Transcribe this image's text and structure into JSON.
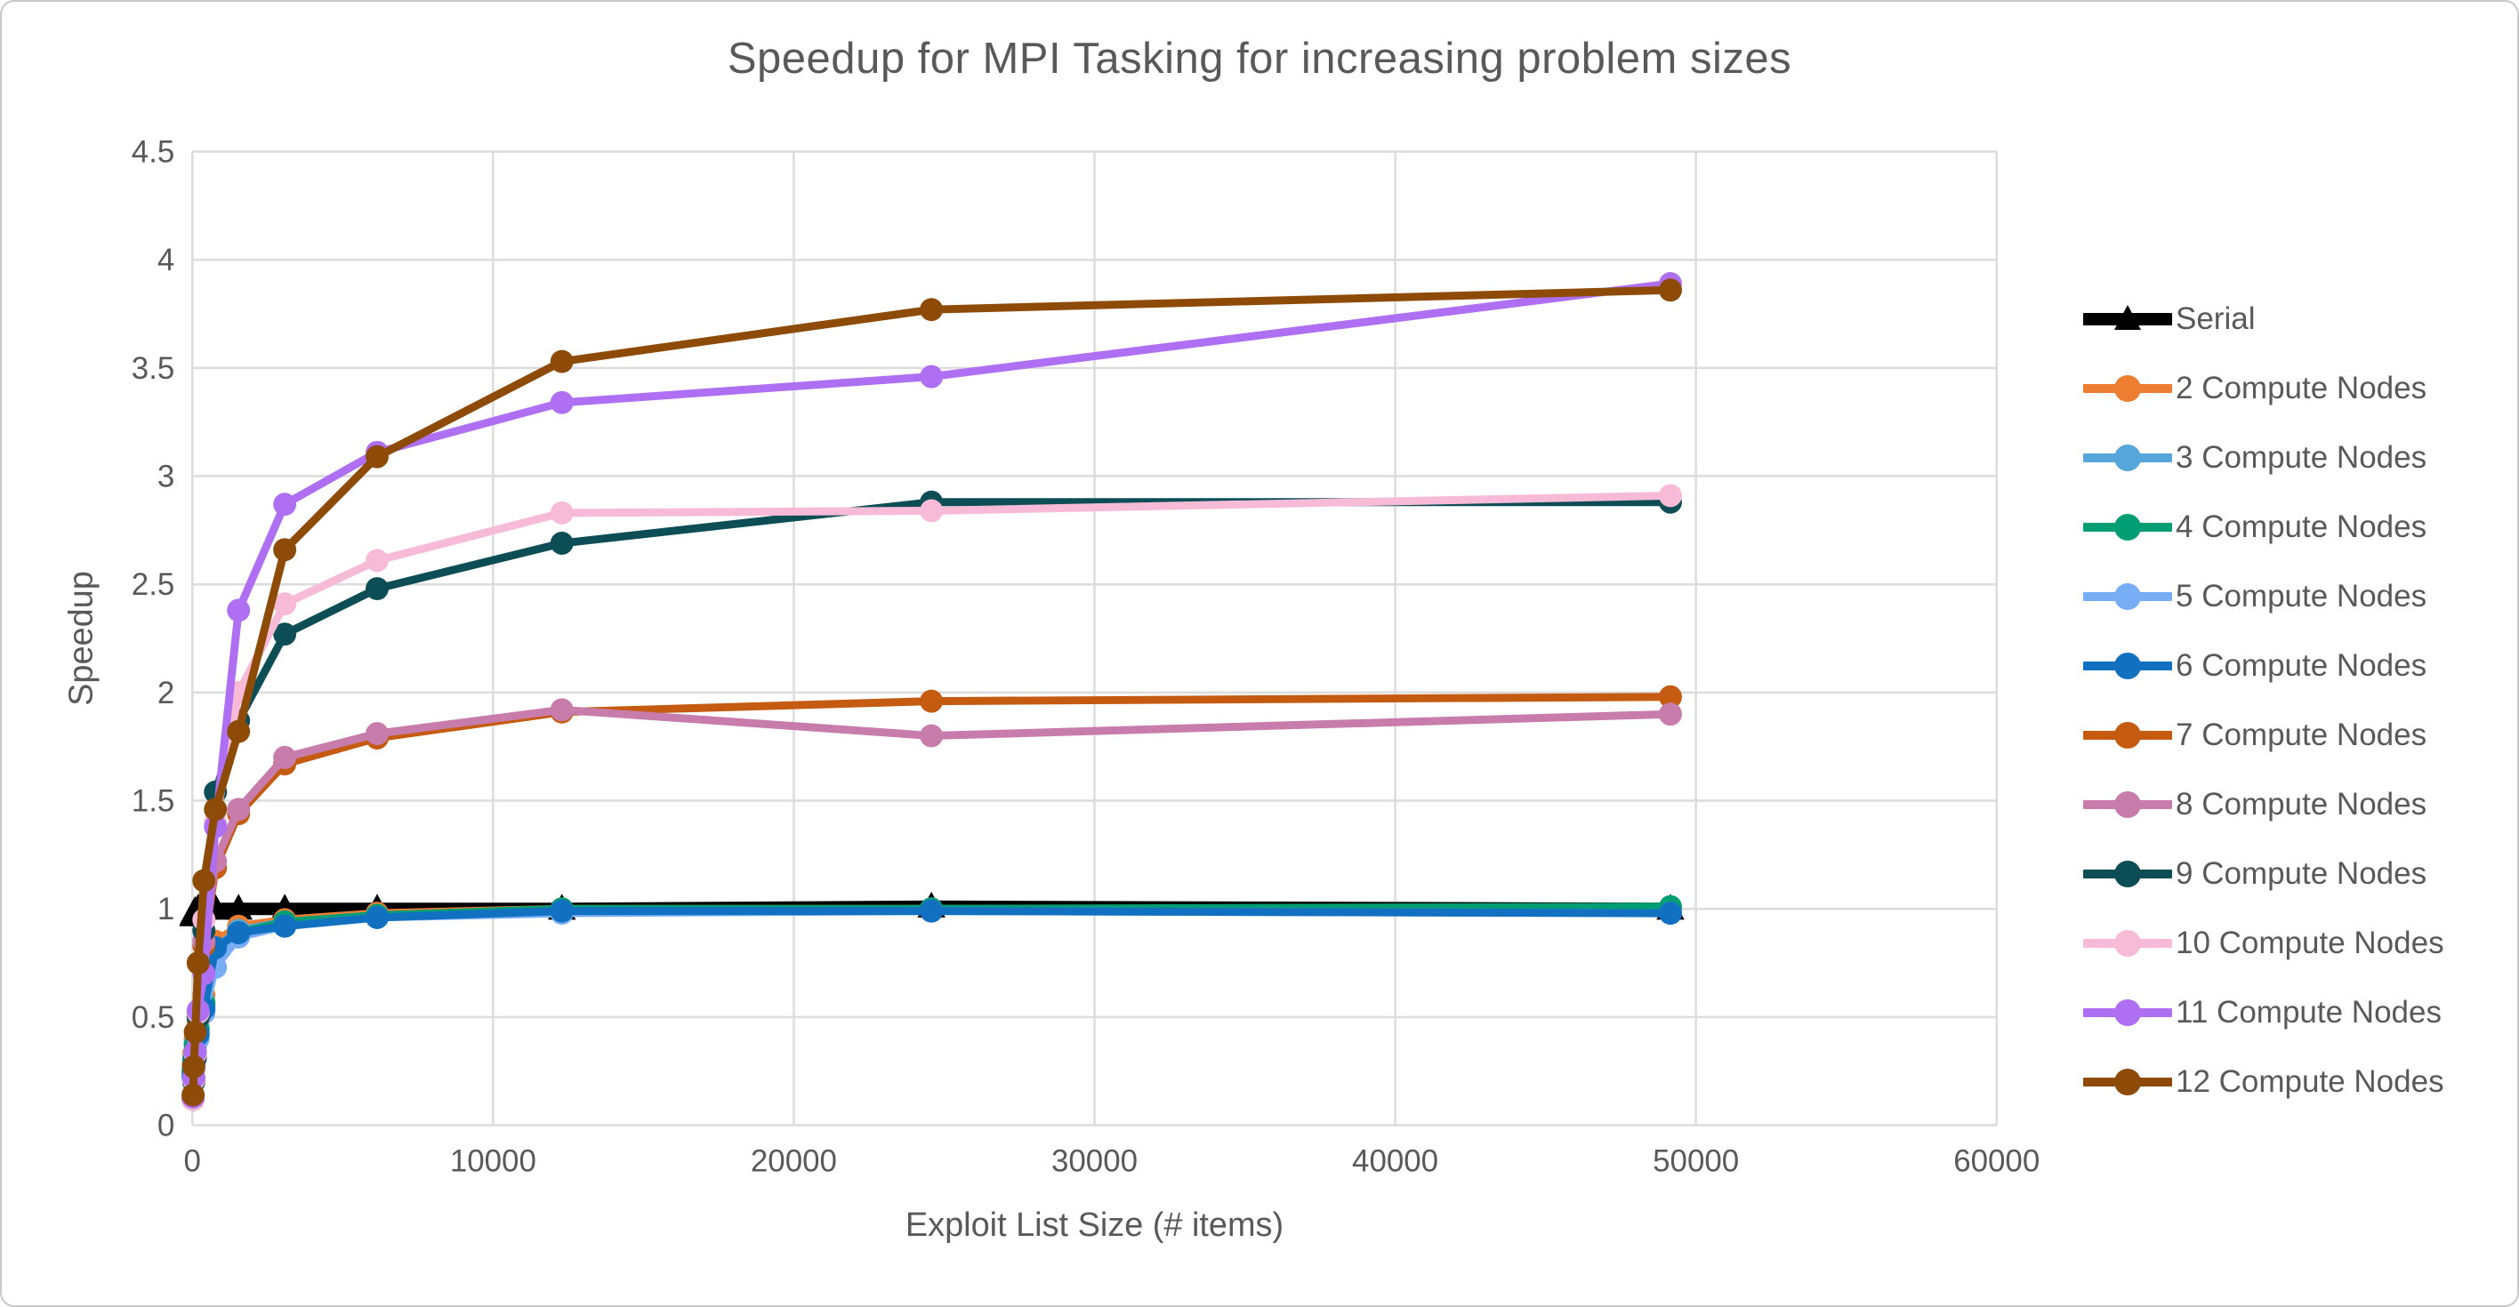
{
  "frame": {
    "background": "#FFFFFF",
    "border_color": "#C9C9C9"
  },
  "colors": {
    "grid": "#DCDCDC",
    "axis_text": "#595959",
    "title_text": "#595959"
  },
  "chart_data": {
    "type": "line",
    "title": "Speedup for MPI Tasking for increasing problem sizes",
    "xlabel": "Exploit List Size (# items)",
    "ylabel": "Speedup",
    "xlim": [
      0,
      60000
    ],
    "ylim": [
      0,
      4.5
    ],
    "x_ticks": [
      0,
      10000,
      20000,
      30000,
      40000,
      50000,
      60000
    ],
    "y_ticks": [
      0,
      0.5,
      1,
      1.5,
      2,
      2.5,
      3,
      3.5,
      4,
      4.5
    ],
    "grid": true,
    "legend_position": "right",
    "x": [
      24,
      48,
      96,
      192,
      384,
      768,
      1536,
      3072,
      6144,
      12288,
      24576,
      49152
    ],
    "series": [
      {
        "name": "Serial",
        "color": "#000000",
        "marker": "triangle",
        "values": [
          0.97,
          0.98,
          0.99,
          1.0,
          1.0,
          1.0,
          1.0,
          1.0,
          1.0,
          1.0,
          1.01,
          1.0
        ]
      },
      {
        "name": "2 Compute Nodes",
        "color": "#ED7D31",
        "marker": "circle",
        "values": [
          0.28,
          0.33,
          0.4,
          0.48,
          0.6,
          0.85,
          0.92,
          0.95,
          0.98,
          1.0,
          1.0,
          1.0
        ]
      },
      {
        "name": "3 Compute Nodes",
        "color": "#56A6DC",
        "marker": "circle",
        "values": [
          0.26,
          0.31,
          0.38,
          0.45,
          0.57,
          0.82,
          0.9,
          0.94,
          0.97,
          0.99,
          1.0,
          1.0
        ]
      },
      {
        "name": "4 Compute Nodes",
        "color": "#029E73",
        "marker": "circle",
        "values": [
          0.25,
          0.3,
          0.37,
          0.44,
          0.56,
          0.8,
          0.89,
          0.94,
          0.97,
          1.0,
          1.0,
          1.01
        ]
      },
      {
        "name": "5 Compute Nodes",
        "color": "#77ADF4",
        "marker": "circle",
        "values": [
          0.22,
          0.26,
          0.32,
          0.4,
          0.52,
          0.73,
          0.87,
          0.92,
          0.96,
          0.98,
          0.99,
          0.98
        ]
      },
      {
        "name": "6 Compute Nodes",
        "color": "#1170C0",
        "marker": "circle",
        "values": [
          0.23,
          0.28,
          0.34,
          0.42,
          0.54,
          0.82,
          0.89,
          0.92,
          0.96,
          0.99,
          0.99,
          0.98
        ]
      },
      {
        "name": "7 Compute Nodes",
        "color": "#C55A11",
        "marker": "circle",
        "values": [
          0.12,
          0.21,
          0.32,
          0.5,
          0.83,
          1.19,
          1.44,
          1.67,
          1.79,
          1.91,
          1.96,
          1.98
        ]
      },
      {
        "name": "8 Compute Nodes",
        "color": "#C87CAC",
        "marker": "circle",
        "values": [
          0.12,
          0.22,
          0.33,
          0.52,
          0.85,
          1.22,
          1.46,
          1.7,
          1.81,
          1.92,
          1.8,
          1.9
        ]
      },
      {
        "name": "9 Compute Nodes",
        "color": "#0D4E56",
        "marker": "circle",
        "values": [
          0.12,
          0.2,
          0.31,
          0.5,
          0.9,
          1.54,
          1.87,
          2.27,
          2.48,
          2.69,
          2.88,
          2.88
        ]
      },
      {
        "name": "10 Compute Nodes",
        "color": "#F8BBD7",
        "marker": "circle",
        "values": [
          0.12,
          0.21,
          0.33,
          0.52,
          0.95,
          1.4,
          2.0,
          2.41,
          2.61,
          2.83,
          2.84,
          2.91
        ]
      },
      {
        "name": "11 Compute Nodes",
        "color": "#AF6FF3",
        "marker": "circle",
        "values": [
          0.13,
          0.22,
          0.34,
          0.53,
          0.7,
          1.38,
          2.38,
          2.87,
          3.11,
          3.34,
          3.46,
          3.89
        ]
      },
      {
        "name": "12 Compute Nodes",
        "color": "#8D4B07",
        "marker": "circle",
        "values": [
          0.14,
          0.27,
          0.43,
          0.75,
          1.13,
          1.46,
          1.82,
          2.66,
          3.09,
          3.53,
          3.77,
          3.86
        ]
      }
    ]
  }
}
